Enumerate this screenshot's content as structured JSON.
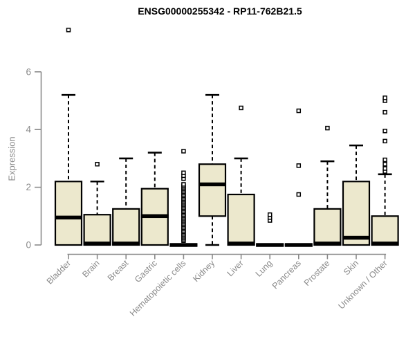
{
  "chart_data": {
    "type": "boxplot",
    "title": "ENSG00000255342 - RP11-762B21.5",
    "ylabel": "Expression",
    "xlabel": "",
    "yticks": [
      0,
      2,
      4,
      6
    ],
    "ylim": [
      0,
      7.6
    ],
    "axis_drawn_range": [
      0,
      6
    ],
    "grid": false,
    "categories": [
      "Bladder",
      "Brain",
      "Breast",
      "Gastric",
      "Hematopoietic cells",
      "Kidney",
      "Liver",
      "Lung",
      "Pancreas",
      "Prostate",
      "Skin",
      "Unknown / Other"
    ],
    "boxes": [
      {
        "category": "Bladder",
        "low": 0,
        "q1": 0,
        "median": 0.95,
        "q3": 2.2,
        "high": 5.2,
        "outliers": [
          7.45
        ]
      },
      {
        "category": "Brain",
        "low": 0,
        "q1": 0,
        "median": 0.05,
        "q3": 1.05,
        "high": 2.2,
        "outliers": [
          2.8
        ]
      },
      {
        "category": "Breast",
        "low": 0,
        "q1": 0,
        "median": 0.05,
        "q3": 1.25,
        "high": 3.0,
        "outliers": []
      },
      {
        "category": "Gastric",
        "low": 0,
        "q1": 0,
        "median": 1.0,
        "q3": 1.95,
        "high": 3.2,
        "outliers": []
      },
      {
        "category": "Hematopoietic cells",
        "low": 0,
        "q1": 0,
        "median": 0,
        "q3": 0,
        "high": 0,
        "outliers": [
          0.15,
          0.2,
          0.25,
          0.3,
          0.35,
          0.4,
          0.45,
          0.5,
          0.55,
          0.6,
          0.65,
          0.7,
          0.75,
          0.8,
          0.85,
          0.9,
          0.95,
          1.0,
          1.05,
          1.1,
          1.15,
          1.2,
          1.25,
          1.3,
          1.35,
          1.4,
          1.45,
          1.5,
          1.55,
          1.6,
          1.65,
          1.7,
          1.75,
          1.8,
          1.85,
          1.9,
          1.95,
          2.0,
          2.05,
          2.1,
          2.3,
          2.4,
          2.5,
          3.25
        ]
      },
      {
        "category": "Kidney",
        "low": 0,
        "q1": 1.0,
        "median": 2.1,
        "q3": 2.8,
        "high": 5.2,
        "outliers": []
      },
      {
        "category": "Liver",
        "low": 0,
        "q1": 0,
        "median": 0.05,
        "q3": 1.75,
        "high": 3.0,
        "outliers": [
          4.75
        ]
      },
      {
        "category": "Lung",
        "low": 0,
        "q1": 0,
        "median": 0,
        "q3": 0,
        "high": 0,
        "outliers": [
          0.85,
          0.95,
          1.05
        ]
      },
      {
        "category": "Pancreas",
        "low": 0,
        "q1": 0,
        "median": 0,
        "q3": 0,
        "high": 0,
        "outliers": [
          1.75,
          2.75,
          4.65
        ]
      },
      {
        "category": "Prostate",
        "low": 0,
        "q1": 0,
        "median": 0.05,
        "q3": 1.25,
        "high": 2.9,
        "outliers": [
          4.05
        ]
      },
      {
        "category": "Skin",
        "low": 0,
        "q1": 0,
        "median": 0.25,
        "q3": 2.2,
        "high": 3.45,
        "outliers": []
      },
      {
        "category": "Unknown / Other",
        "low": 0,
        "q1": 0,
        "median": 0.05,
        "q3": 1.0,
        "high": 2.45,
        "outliers": [
          2.55,
          2.65,
          2.8,
          2.95,
          3.6,
          3.95,
          4.6,
          5.0,
          5.1
        ]
      }
    ],
    "colors": {
      "box_fill": "#ece8cd",
      "box_border": "#000000",
      "median": "#000000",
      "whisker": "#000000",
      "outlier_border": "#000000",
      "outlier_fill": "#ffffff",
      "axis": "#8a8a8a",
      "tick_label": "#8a8a8a",
      "title": "#000000"
    }
  }
}
